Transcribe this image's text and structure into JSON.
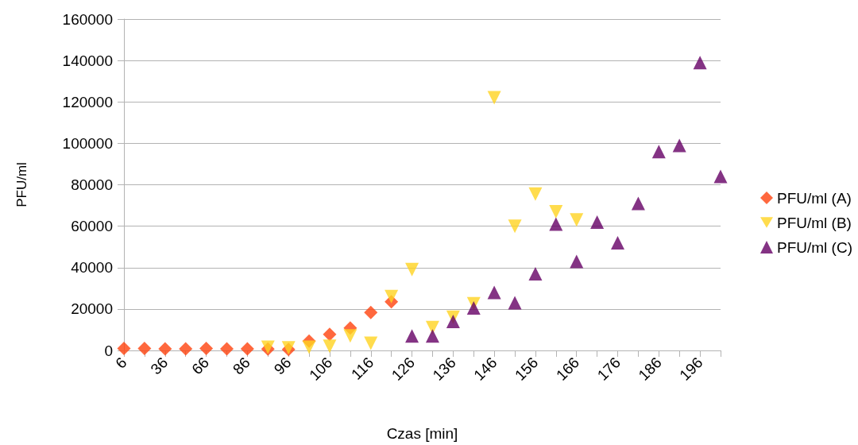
{
  "chart_data": {
    "type": "scatter",
    "xlabel": "Czas [min]",
    "ylabel": "PFU/ml",
    "categories": [
      "6",
      null,
      "36",
      null,
      "66",
      null,
      "86",
      null,
      "96",
      null,
      "106",
      null,
      "116",
      null,
      "126",
      null,
      "136",
      null,
      "146",
      null,
      "156",
      null,
      "166",
      null,
      "176",
      null,
      "186",
      null,
      "196",
      null
    ],
    "series": [
      {
        "name": "PFU/ml (A)",
        "color": "#ff420e",
        "marker": "diamond",
        "values": [
          1000,
          1000,
          800,
          800,
          1000,
          800,
          800,
          700,
          500,
          4500,
          7800,
          10800,
          18300,
          23500,
          null,
          null,
          null,
          null,
          null,
          null,
          null,
          null,
          null,
          null,
          null,
          null,
          null,
          null,
          null,
          null
        ]
      },
      {
        "name": "PFU/ml (B)",
        "color": "#ffd320",
        "marker": "triangle-down",
        "values": [
          null,
          null,
          null,
          null,
          null,
          null,
          null,
          1500,
          1200,
          1500,
          2000,
          7000,
          3500,
          26000,
          39000,
          11000,
          16000,
          22500,
          122000,
          60000,
          75500,
          67000,
          63000,
          null,
          null,
          null,
          null,
          null,
          null,
          null
        ]
      },
      {
        "name": "PFU/ml (C)",
        "color": "#650065",
        "marker": "triangle",
        "values": [
          null,
          null,
          null,
          null,
          null,
          null,
          null,
          null,
          null,
          null,
          null,
          null,
          null,
          null,
          7000,
          7000,
          14000,
          20500,
          28000,
          23000,
          37000,
          61000,
          43000,
          62000,
          52000,
          71000,
          96000,
          99000,
          139000,
          84000
        ]
      }
    ],
    "ylim": [
      0,
      160000
    ],
    "yticks": [
      0,
      20000,
      40000,
      60000,
      80000,
      100000,
      120000,
      140000,
      160000
    ],
    "grid": "y",
    "legend": "right"
  }
}
